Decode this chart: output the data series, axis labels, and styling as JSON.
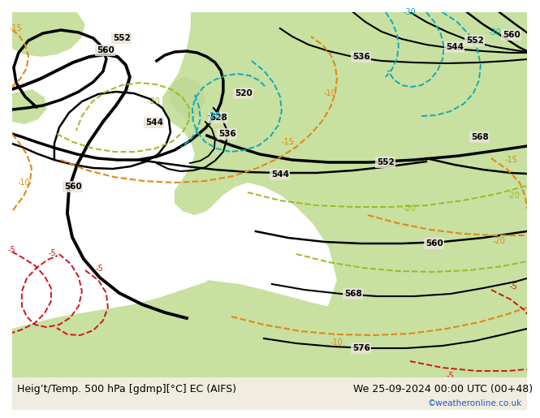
{
  "title_left": "Heig’t/Temp. 500 hPa [gdmp][°C] EC (AIFS)",
  "title_right": "We 25-09-2024 00:00 UTC (00+48)",
  "credit": "©weatheronline.co.uk",
  "bg_color": "#d8d8d0",
  "land_green": "#c8e0a0",
  "land_green2": "#b8d890",
  "sea_gray": "#d0d0c8",
  "black": "#000000",
  "orange": "#e88820",
  "red": "#cc2020",
  "cyan": "#10aabb",
  "green_dash": "#99bb22",
  "title_color": "#000000",
  "credit_color": "#2255cc",
  "font_size_title": 9,
  "font_size_credit": 7.5
}
